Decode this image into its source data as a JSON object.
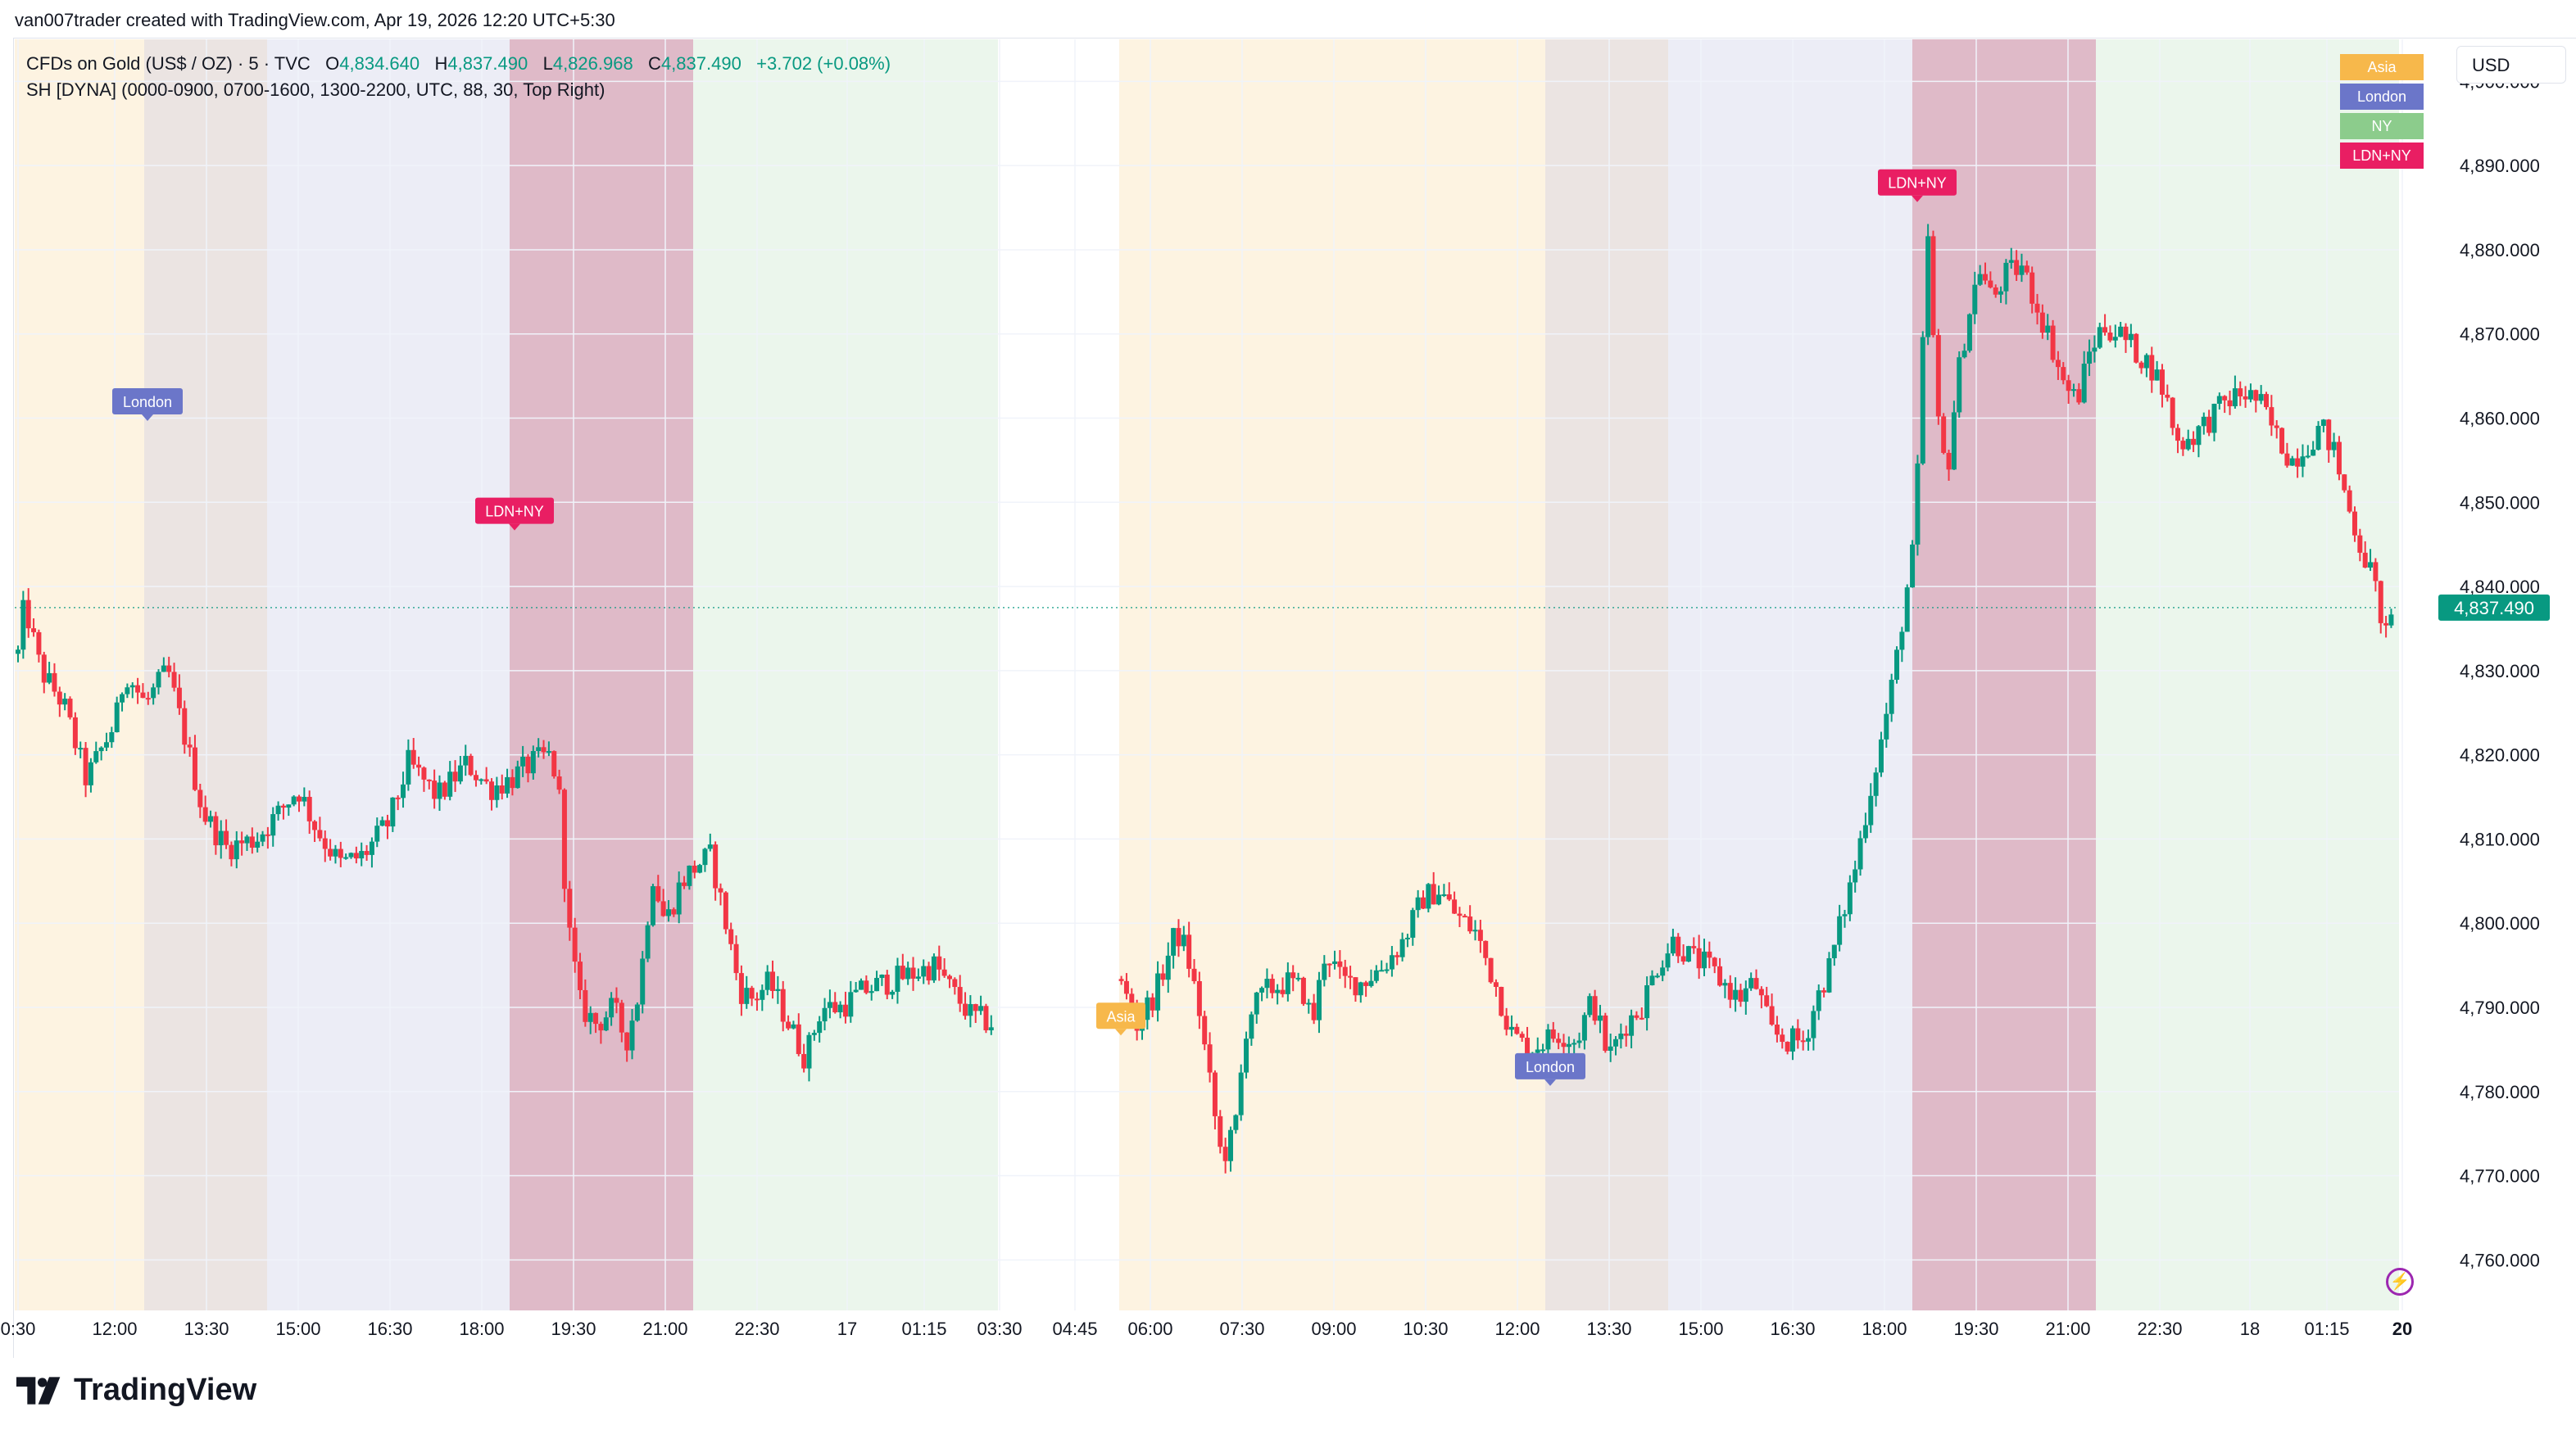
{
  "header": {
    "attribution": "van007trader created with TradingView.com, Apr 19, 2026 12:20 UTC+5:30"
  },
  "legend": {
    "symbol": "CFDs on Gold (US$ / OZ) · 5 · TVC",
    "open_label": "O",
    "open": "4,834.640",
    "high_label": "H",
    "high": "4,837.490",
    "low_label": "L",
    "low": "4,826.968",
    "close_label": "C",
    "close": "4,837.490",
    "change": "+3.702 (+0.08%)",
    "indicator": "SH [DYNA] (0000-0900, 0700-1600, 1300-2200, UTC, 88, 30, Top Right)"
  },
  "currency_button": "USD",
  "brand": {
    "name": "TradingView"
  },
  "colors": {
    "up": "#089981",
    "down": "#f23645",
    "asia": "#f7b84b",
    "london": "#6b76c9",
    "ny": "#8ccc8c",
    "ldn_ny": "#e91e63",
    "asia_bg": "#fdf3e1",
    "london_bg": "#ebe4e2",
    "ny_bg": "#ecedf6",
    "ldnny_bg": "#dfbac8",
    "nybg2": "#ebf6ec"
  },
  "icons": [
    "lightning-icon",
    "tradingview-logo-icon"
  ],
  "chart_data": {
    "type": "candlestick",
    "title": "CFDs on Gold (US$ / OZ)",
    "interval": "5",
    "currency": "USD",
    "ylim": [
      4754,
      4905
    ],
    "y_ticks": [
      "4,760.000",
      "4,770.000",
      "4,780.000",
      "4,790.000",
      "4,800.000",
      "4,810.000",
      "4,820.000",
      "4,830.000",
      "4,840.000",
      "4,850.000",
      "4,860.000",
      "4,870.000",
      "4,880.000",
      "4,890.000",
      "4,900.000"
    ],
    "y_tick_values": [
      4760,
      4770,
      4780,
      4790,
      4800,
      4810,
      4820,
      4830,
      4840,
      4850,
      4860,
      4870,
      4880,
      4890,
      4900
    ],
    "x_ticks": [
      "0:30",
      "12:00",
      "13:30",
      "15:00",
      "16:30",
      "18:00",
      "19:30",
      "21:00",
      "22:30",
      "17",
      "01:15",
      "03:30",
      "04:45",
      "06:00",
      "07:30",
      "09:00",
      "10:30",
      "12:00",
      "13:30",
      "15:00",
      "16:30",
      "18:00",
      "19:30",
      "21:00",
      "22:30",
      "18",
      "01:15",
      "20"
    ],
    "last_price": "4,837.490",
    "last_price_value": 4837.49,
    "session_legend": [
      "Asia",
      "London",
      "NY",
      "LDN+NY"
    ],
    "session_labels": [
      {
        "text": "London",
        "at_tick": "12:00",
        "price": 4862
      },
      {
        "text": "LDN+NY",
        "at_tick": "18:00",
        "price": 4849
      },
      {
        "text": "Asia",
        "at_tick": "04:45",
        "price": 4789
      },
      {
        "text": "London",
        "at_tick": "12:00",
        "price": 4783
      },
      {
        "text": "LDN+NY",
        "at_tick": "18:00",
        "price": 4888
      }
    ],
    "path": [
      [
        0,
        4832
      ],
      [
        4,
        4838
      ],
      [
        14,
        4830
      ],
      [
        28,
        4826
      ],
      [
        42,
        4817
      ],
      [
        60,
        4824
      ],
      [
        66,
        4830
      ],
      [
        78,
        4826
      ],
      [
        92,
        4830
      ],
      [
        104,
        4821
      ],
      [
        114,
        4813
      ],
      [
        128,
        4809
      ],
      [
        146,
        4810
      ],
      [
        160,
        4813
      ],
      [
        172,
        4816
      ],
      [
        184,
        4811
      ],
      [
        198,
        4807
      ],
      [
        212,
        4808
      ],
      [
        228,
        4812
      ],
      [
        240,
        4819
      ],
      [
        258,
        4815
      ],
      [
        276,
        4819
      ],
      [
        290,
        4816
      ],
      [
        302,
        4817
      ],
      [
        316,
        4819
      ],
      [
        326,
        4820
      ],
      [
        332,
        4817
      ],
      [
        338,
        4800
      ],
      [
        346,
        4790
      ],
      [
        356,
        4788
      ],
      [
        366,
        4790
      ],
      [
        374,
        4786
      ],
      [
        382,
        4792
      ],
      [
        390,
        4806
      ],
      [
        398,
        4800
      ],
      [
        408,
        4805
      ],
      [
        418,
        4807
      ],
      [
        426,
        4808
      ],
      [
        434,
        4801
      ],
      [
        444,
        4792
      ],
      [
        452,
        4791
      ],
      [
        462,
        4793
      ],
      [
        474,
        4788
      ],
      [
        484,
        4784
      ],
      [
        494,
        4790
      ],
      [
        506,
        4790
      ],
      [
        520,
        4792
      ],
      [
        534,
        4793
      ],
      [
        550,
        4794
      ],
      [
        564,
        4795
      ],
      [
        574,
        4792
      ],
      [
        586,
        4789
      ],
      [
        600,
        4788
      ],
      [
        612,
        4793
      ],
      [
        626,
        4795
      ],
      [
        640,
        4795
      ],
      [
        652,
        4793
      ],
      [
        666,
        4796
      ],
      [
        680,
        4792
      ],
      [
        688,
        4788
      ],
      [
        700,
        4792
      ],
      [
        712,
        4799
      ],
      [
        718,
        4797
      ],
      [
        726,
        4790
      ],
      [
        732,
        4782
      ],
      [
        740,
        4772
      ],
      [
        748,
        4775
      ],
      [
        756,
        4789
      ],
      [
        768,
        4792
      ],
      [
        780,
        4793
      ],
      [
        790,
        4792
      ],
      [
        796,
        4788
      ],
      [
        804,
        4797
      ],
      [
        814,
        4793
      ],
      [
        826,
        4793
      ],
      [
        840,
        4795
      ],
      [
        852,
        4798
      ],
      [
        864,
        4803
      ],
      [
        874,
        4804
      ],
      [
        884,
        4801
      ],
      [
        896,
        4799
      ],
      [
        908,
        4793
      ],
      [
        918,
        4787
      ],
      [
        928,
        4785
      ],
      [
        938,
        4786
      ],
      [
        948,
        4787
      ],
      [
        958,
        4786
      ],
      [
        968,
        4791
      ],
      [
        978,
        4784
      ],
      [
        988,
        4788
      ],
      [
        998,
        4790
      ],
      [
        1008,
        4795
      ],
      [
        1018,
        4798
      ],
      [
        1028,
        4796
      ],
      [
        1038,
        4795
      ],
      [
        1048,
        4793
      ],
      [
        1058,
        4791
      ],
      [
        1068,
        4793
      ],
      [
        1078,
        4787
      ],
      [
        1088,
        4786
      ],
      [
        1098,
        4786
      ],
      [
        1106,
        4791
      ],
      [
        1114,
        4795
      ],
      [
        1122,
        4801
      ],
      [
        1130,
        4807
      ],
      [
        1138,
        4815
      ],
      [
        1146,
        4822
      ],
      [
        1154,
        4830
      ],
      [
        1160,
        4838
      ],
      [
        1166,
        4845
      ],
      [
        1170,
        4862
      ],
      [
        1174,
        4883
      ],
      [
        1180,
        4860
      ],
      [
        1186,
        4853
      ],
      [
        1192,
        4864
      ],
      [
        1198,
        4871
      ],
      [
        1206,
        4878
      ],
      [
        1214,
        4874
      ],
      [
        1222,
        4877
      ],
      [
        1232,
        4878
      ],
      [
        1242,
        4873
      ],
      [
        1250,
        4869
      ],
      [
        1258,
        4864
      ],
      [
        1266,
        4862
      ],
      [
        1274,
        4868
      ],
      [
        1282,
        4871
      ],
      [
        1292,
        4870
      ],
      [
        1302,
        4868
      ],
      [
        1312,
        4866
      ],
      [
        1320,
        4863
      ],
      [
        1328,
        4857
      ],
      [
        1338,
        4858
      ],
      [
        1348,
        4860
      ],
      [
        1358,
        4862
      ],
      [
        1368,
        4863
      ],
      [
        1378,
        4862
      ],
      [
        1388,
        4858
      ],
      [
        1398,
        4855
      ],
      [
        1408,
        4857
      ],
      [
        1416,
        4859
      ],
      [
        1424,
        4856
      ],
      [
        1432,
        4850
      ],
      [
        1440,
        4845
      ],
      [
        1448,
        4841
      ],
      [
        1456,
        4834
      ],
      [
        1462,
        4837
      ]
    ]
  }
}
